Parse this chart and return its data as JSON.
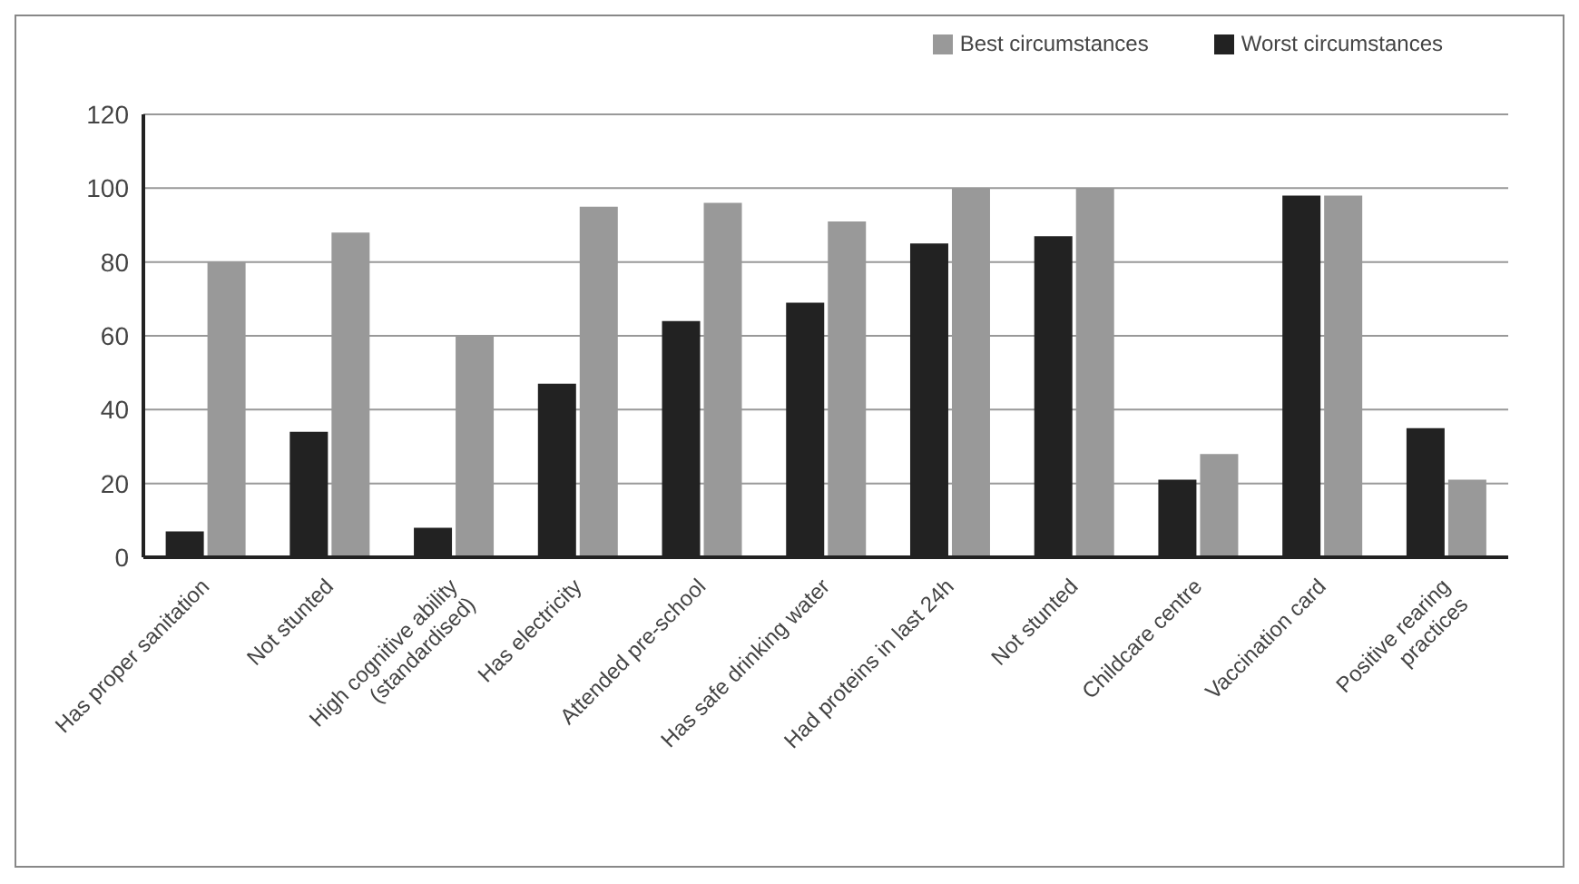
{
  "chart_data": {
    "type": "bar",
    "categories": [
      "Has proper sanitation",
      "Not stunted",
      "High cognitive ability (standardised)",
      "Has electricity",
      "Attended pre-school",
      "Has safe drinking water",
      "Had proteins in last 24h",
      "Not stunted",
      "Childcare centre",
      "Vaccination card",
      "Positive rearing practices"
    ],
    "series": [
      {
        "name": "Worst circumstances",
        "color": "#222222",
        "values": [
          7,
          34,
          8,
          47,
          64,
          69,
          85,
          87,
          21,
          98,
          35
        ]
      },
      {
        "name": "Best circumstances",
        "color": "#999999",
        "values": [
          80,
          88,
          60,
          95,
          96,
          91,
          100,
          100,
          28,
          98,
          21
        ]
      }
    ],
    "ylim": [
      0,
      120
    ],
    "yticks": [
      0,
      20,
      40,
      60,
      80,
      100,
      120
    ],
    "grid": "y",
    "legend": "top right"
  }
}
